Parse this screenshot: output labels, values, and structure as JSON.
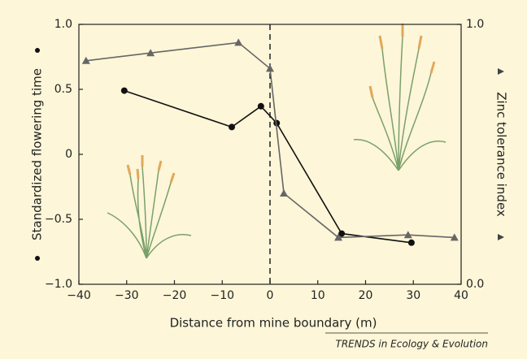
{
  "chart_data": {
    "type": "line",
    "xlabel": "Distance from mine boundary (m)",
    "ylabel": "Standardized flowering time",
    "y2label": "Zinc tolerance index",
    "source": "TRENDS in Ecology & Evolution",
    "xlim": [
      -40,
      40
    ],
    "xticks": [
      {
        "value": -40,
        "label": "−40"
      },
      {
        "value": -30,
        "label": "−30"
      },
      {
        "value": -20,
        "label": "−20"
      },
      {
        "value": -10,
        "label": "−10"
      },
      0,
      10,
      20,
      30,
      40
    ],
    "ylim": [
      -1,
      1
    ],
    "yticks": [
      {
        "value": -1,
        "label": "−1.0"
      },
      {
        "value": -0.5,
        "label": "−0.5"
      },
      0,
      0.5,
      {
        "value": 1,
        "label": "1.0"
      }
    ],
    "y2lim": [
      0,
      1
    ],
    "y2ticks": [
      {
        "value": 0,
        "label": "0.0"
      },
      {
        "value": 1,
        "label": "1.0"
      }
    ],
    "vline": 0,
    "series": [
      {
        "name": "Standardized flowering time",
        "color": "#111111",
        "marker": "circle",
        "x": [
          -30.5,
          -8,
          -1.9,
          1.4,
          15,
          29.6
        ],
        "values": [
          0.49,
          0.21,
          0.37,
          0.24,
          -0.61,
          -0.68
        ]
      },
      {
        "name": "Zinc tolerance index",
        "color": "#666666",
        "marker": "triangle",
        "axis": "y2",
        "x": [
          -38.5,
          -25,
          -6.6,
          0,
          2.9,
          14.3,
          28.9,
          38.6
        ],
        "values": [
          0.86,
          0.89,
          0.93,
          0.83,
          0.35,
          0.18,
          0.19,
          0.18
        ]
      }
    ]
  }
}
